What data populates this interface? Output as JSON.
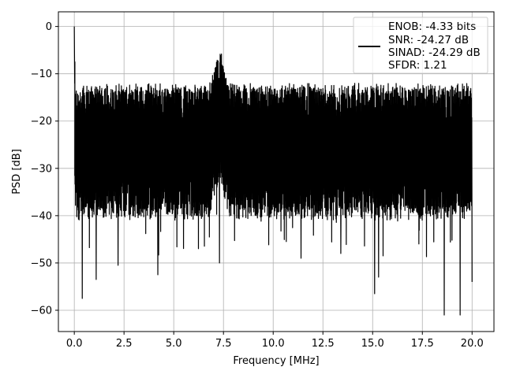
{
  "chart_data": {
    "type": "line",
    "xlabel": "Frequency [MHz]",
    "ylabel": "PSD [dB]",
    "xlim": [
      -0.8,
      21.1
    ],
    "ylim": [
      -64.5,
      3.1
    ],
    "x_ticks": [
      0.0,
      2.5,
      5.0,
      7.5,
      10.0,
      12.5,
      15.0,
      17.5,
      20.0
    ],
    "x_tick_labels": [
      "0.0",
      "2.5",
      "5.0",
      "7.5",
      "10.0",
      "12.5",
      "15.0",
      "17.5",
      "20.0"
    ],
    "y_ticks": [
      0,
      -10,
      -20,
      -30,
      -40,
      -50,
      -60
    ],
    "y_tick_labels": [
      "0",
      "−10",
      "−20",
      "−30",
      "−40",
      "−50",
      "−60"
    ],
    "grid": true,
    "legend_position": "top-right",
    "series": [
      {
        "name": "",
        "color": "#000000",
        "x_range": [
          0.0,
          20.0
        ],
        "peak": {
          "x": 0.0,
          "y": 0.0
        },
        "typical_upper_envelope_db": -13,
        "typical_lower_envelope_db": -38,
        "envelope_bump": {
          "x": [
            6.8,
            7.8
          ],
          "upper_db": -5
        },
        "deep_nulls": [
          {
            "x": 0.4,
            "y": -57.5
          },
          {
            "x": 1.1,
            "y": -53.5
          },
          {
            "x": 2.2,
            "y": -50.5
          },
          {
            "x": 4.2,
            "y": -52.5
          },
          {
            "x": 7.3,
            "y": -50.0
          },
          {
            "x": 11.4,
            "y": -49.0
          },
          {
            "x": 13.4,
            "y": -48.0
          },
          {
            "x": 15.1,
            "y": -56.5
          },
          {
            "x": 15.3,
            "y": -53.0
          },
          {
            "x": 18.6,
            "y": -61.0
          },
          {
            "x": 19.4,
            "y": -61.0
          },
          {
            "x": 20.0,
            "y": -54.0
          }
        ]
      }
    ],
    "legend_lines": [
      "ENOB: -4.33 bits",
      "SNR: -24.27 dB",
      "SINAD: -24.29 dB",
      "SFDR: 1.21"
    ]
  }
}
